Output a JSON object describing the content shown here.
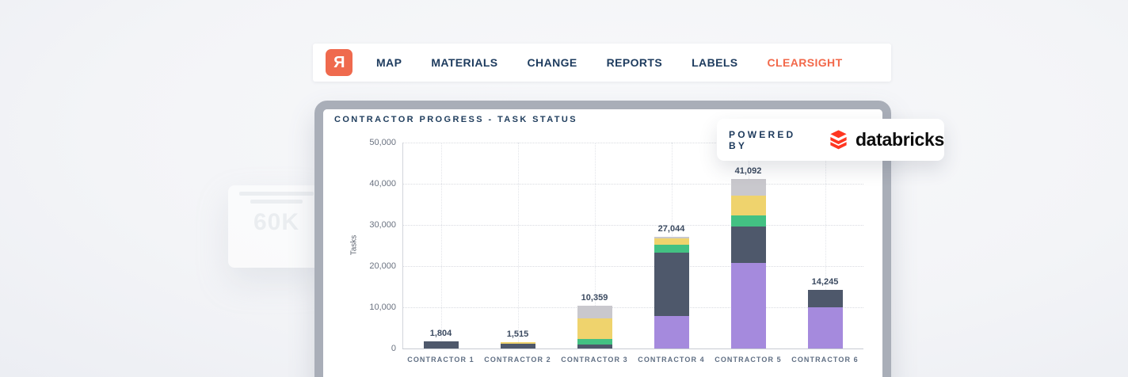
{
  "nav": {
    "logo_letter": "R",
    "items": [
      {
        "label": "MAP",
        "active": false
      },
      {
        "label": "MATERIALS",
        "active": false
      },
      {
        "label": "CHANGE",
        "active": false
      },
      {
        "label": "REPORTS",
        "active": false
      },
      {
        "label": "LABELS",
        "active": false
      },
      {
        "label": "CLEARSIGHT",
        "active": true
      }
    ]
  },
  "badge": {
    "powered_by": "POWERED BY",
    "brand": "databricks",
    "brand_color": "#ff3621"
  },
  "ghost": {
    "value": "60K"
  },
  "chart_data": {
    "type": "bar",
    "stacked": true,
    "title": "CONTRACTOR PROGRESS - TASK STATUS",
    "ylabel": "Tasks",
    "ylim": [
      0,
      50000
    ],
    "ytick_interval": 10000,
    "yticks": [
      "0",
      "10,000",
      "20,000",
      "30,000",
      "40,000",
      "50,000"
    ],
    "grid": "dotted",
    "legend": "none",
    "categories": [
      "CONTRACTOR 1",
      "CONTRACTOR 2",
      "CONTRACTOR 3",
      "CONTRACTOR 4",
      "CONTRACTOR 5",
      "CONTRACTOR 6"
    ],
    "totals": [
      1804,
      1515,
      10359,
      27044,
      41092,
      14245
    ],
    "total_labels": [
      "1,804",
      "1,515",
      "10,359",
      "27,044",
      "41,092",
      "14,245"
    ],
    "series": [
      {
        "name": "purple",
        "color": "#a58add",
        "values": [
          0,
          0,
          0,
          7800,
          20700,
          10000
        ]
      },
      {
        "name": "slate",
        "color": "#4e586b",
        "values": [
          1804,
          1215,
          1000,
          15500,
          9000,
          4245
        ]
      },
      {
        "name": "green",
        "color": "#43c183",
        "values": [
          0,
          0,
          1300,
          1900,
          2600,
          0
        ]
      },
      {
        "name": "yellow",
        "color": "#efd36d",
        "values": [
          0,
          300,
          5100,
          1600,
          4800,
          0
        ]
      },
      {
        "name": "gray",
        "color": "#c9c8cd",
        "values": [
          0,
          0,
          2959,
          244,
          3992,
          0
        ]
      }
    ]
  },
  "colors": {
    "accent_coral": "#ef6a4e",
    "navy_text": "#1d3b5e",
    "card_frame": "#a9aeb8",
    "background": "#f3f4f7"
  }
}
